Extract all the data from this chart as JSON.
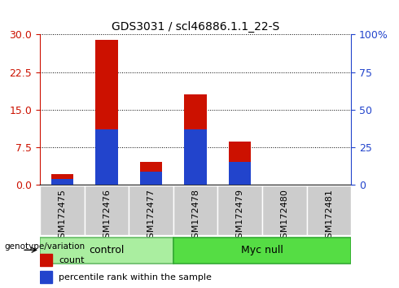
{
  "title": "GDS3031 / scl46886.1.1_22-S",
  "samples": [
    "GSM172475",
    "GSM172476",
    "GSM172477",
    "GSM172478",
    "GSM172479",
    "GSM172480",
    "GSM172481"
  ],
  "count_values": [
    2.0,
    29.0,
    4.5,
    18.0,
    8.5,
    0.0,
    0.0
  ],
  "percentile_values": [
    3.5,
    36.7,
    8.3,
    36.7,
    15.0,
    0.0,
    0.0
  ],
  "count_color": "#cc1100",
  "percentile_color": "#2244cc",
  "left_yticks": [
    0,
    7.5,
    15,
    22.5,
    30
  ],
  "right_ytick_vals": [
    0,
    25,
    50,
    75,
    100
  ],
  "right_ytick_labels": [
    "0",
    "25",
    "50",
    "75",
    "100%"
  ],
  "ylim_left": [
    0,
    30
  ],
  "ylim_right": [
    0,
    100
  ],
  "grid_color": "black",
  "bar_width": 0.5,
  "groups": [
    {
      "label": "control",
      "start": 0,
      "end": 3,
      "color": "#aaeea0",
      "edge": "#66bb66"
    },
    {
      "label": "Myc null",
      "start": 3,
      "end": 7,
      "color": "#55dd44",
      "edge": "#33aa33"
    }
  ],
  "group_label_text": "genotype/variation",
  "left_tick_color": "#cc1100",
  "right_tick_color": "#2244cc",
  "tick_label_fontsize": 8,
  "title_fontsize": 10,
  "legend_items": [
    "count",
    "percentile rank within the sample"
  ],
  "xtick_bg": "#cccccc",
  "plot_bg": "#ffffff"
}
